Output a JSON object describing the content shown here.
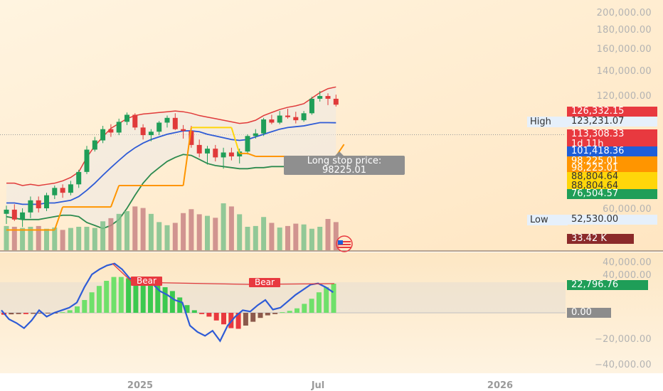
{
  "chart_data": [
    {
      "type": "candlestick",
      "pane": "price",
      "title": "",
      "yscale": "log",
      "y_ticks": [
        "200,000.00",
        "180,000.00",
        "160,000.00",
        "140,000.00",
        "120,000.00",
        "60,000.00",
        "40,000.00"
      ],
      "y_tick_values": [
        200000,
        180000,
        160000,
        140000,
        120000,
        60000,
        40000
      ],
      "x_ticks": [
        "2025",
        "Jul",
        "2026"
      ],
      "candles": [
        [
          58000,
          61000,
          54500,
          59500
        ],
        [
          59500,
          61500,
          55500,
          56000
        ],
        [
          56000,
          60000,
          53500,
          58500
        ],
        [
          58500,
          64500,
          56500,
          63000
        ],
        [
          63000,
          64500,
          58500,
          60000
        ],
        [
          60000,
          66000,
          59000,
          65000
        ],
        [
          65000,
          69000,
          63500,
          68000
        ],
        [
          68000,
          69500,
          64000,
          66000
        ],
        [
          66000,
          71000,
          65000,
          69500
        ],
        [
          69500,
          76000,
          68000,
          75000
        ],
        [
          75000,
          88000,
          74000,
          86000
        ],
        [
          86000,
          93000,
          85000,
          91000
        ],
        [
          91000,
          99500,
          89500,
          97500
        ],
        [
          97500,
          100500,
          93000,
          95500
        ],
        [
          95500,
          104000,
          94000,
          102000
        ],
        [
          102000,
          108000,
          100000,
          106500
        ],
        [
          106500,
          107500,
          97000,
          98500
        ],
        [
          98500,
          100500,
          91500,
          94000
        ],
        [
          94000,
          97500,
          90500,
          96000
        ],
        [
          96000,
          102500,
          94000,
          101500
        ],
        [
          101500,
          106000,
          98500,
          104500
        ],
        [
          104500,
          107500,
          97000,
          97500
        ],
        [
          97500,
          100000,
          92000,
          96500
        ],
        [
          96500,
          99500,
          87000,
          88500
        ],
        [
          88500,
          91500,
          82000,
          84000
        ],
        [
          84000,
          88000,
          78500,
          86500
        ],
        [
          86500,
          88500,
          80000,
          82000
        ],
        [
          82000,
          87000,
          76500,
          84500
        ],
        [
          84500,
          87000,
          80500,
          82500
        ],
        [
          82500,
          86500,
          79000,
          85000
        ],
        [
          85000,
          94500,
          83500,
          93500
        ],
        [
          93500,
          97500,
          92000,
          95000
        ],
        [
          95000,
          104500,
          93500,
          103500
        ],
        [
          103500,
          106500,
          100500,
          101500
        ],
        [
          101500,
          109000,
          100500,
          106000
        ],
        [
          106000,
          110500,
          104000,
          105000
        ],
        [
          105000,
          108500,
          101000,
          103000
        ],
        [
          103000,
          109000,
          102000,
          107500
        ],
        [
          107500,
          119000,
          106500,
          117500
        ],
        [
          117500,
          123231,
          115500,
          119500
        ],
        [
          119500,
          121500,
          113000,
          117500
        ],
        [
          117500,
          120500,
          112000,
          113308
        ]
      ],
      "bollinger": {
        "upper": [
          70000,
          70000,
          69000,
          69500,
          69000,
          69500,
          70000,
          71000,
          72500,
          75000,
          82000,
          88000,
          93000,
          98000,
          101000,
          104000,
          106000,
          107000,
          107500,
          108000,
          108500,
          109000,
          108500,
          107500,
          106000,
          105000,
          104000,
          103000,
          102000,
          101000,
          101500,
          103000,
          106000,
          108000,
          110000,
          111500,
          112500,
          114000,
          118000,
          122000,
          125000,
          126332
        ],
        "basis": [
          62000,
          62000,
          61500,
          61500,
          61500,
          62000,
          62000,
          62500,
          63000,
          64500,
          67000,
          70000,
          73500,
          77000,
          80500,
          84000,
          87000,
          89500,
          91500,
          93000,
          94500,
          95500,
          96500,
          96500,
          96000,
          94500,
          93500,
          92500,
          91500,
          91000,
          91500,
          93000,
          94500,
          96000,
          97500,
          98500,
          99000,
          99500,
          100500,
          101500,
          101500,
          101418
        ],
        "lower": [
          57000,
          56500,
          56000,
          56000,
          56000,
          56500,
          57000,
          57500,
          57500,
          57000,
          55000,
          54000,
          53000,
          54000,
          56000,
          60000,
          65000,
          70000,
          74000,
          77000,
          80000,
          82000,
          83500,
          83000,
          81000,
          79000,
          78000,
          77500,
          77000,
          76500,
          76500,
          77000,
          77000,
          77500,
          77500,
          77500,
          77500,
          77000,
          76500,
          76000,
          76000,
          76504
        ]
      },
      "long_stop": [
        [
          0,
          52530
        ],
        [
          6,
          52530
        ],
        [
          7,
          60500
        ],
        [
          13,
          60500
        ],
        [
          14,
          69000
        ],
        [
          22,
          69000
        ],
        [
          23,
          98500
        ],
        [
          28,
          98500
        ],
        [
          29,
          84000
        ],
        [
          30,
          84000
        ],
        [
          31,
          82500
        ],
        [
          41,
          82500
        ],
        [
          42,
          88804
        ]
      ],
      "volume": [
        62,
        60,
        57,
        60,
        62,
        55,
        58,
        52,
        57,
        60,
        60,
        57,
        74,
        82,
        93,
        100,
        112,
        108,
        93,
        72,
        64,
        70,
        95,
        105,
        92,
        88,
        83,
        120,
        112,
        92,
        60,
        62,
        85,
        70,
        58,
        62,
        68,
        66,
        55,
        60,
        80,
        72
      ],
      "price_labels": [
        {
          "label": "",
          "text": "126,332.15",
          "bg": "#e8393f",
          "fg": "#ffffff"
        },
        {
          "label": "High",
          "text": "123,231.07",
          "bg": "#e6f0fb",
          "fg": "#333333"
        },
        {
          "label": "",
          "text": "113,308.33",
          "bg": "#e8393f",
          "fg": "#ffffff"
        },
        {
          "label": "",
          "text": "1d 11h",
          "bg": "#e8393f",
          "fg": "#ffffff"
        },
        {
          "label": "",
          "text": "101,418.36",
          "bg": "#1e5ed8",
          "fg": "#ffffff"
        },
        {
          "label": "",
          "text": "98,225.01",
          "bg": "#ff9500",
          "fg": "#ffffff"
        },
        {
          "label": "",
          "text": "98,225.01",
          "bg": "#ff9500",
          "fg": "#ffffff"
        },
        {
          "label": "",
          "text": "88,804.64",
          "bg": "#ffd60a",
          "fg": "#333333"
        },
        {
          "label": "",
          "text": "88,804.64",
          "bg": "#ffd60a",
          "fg": "#333333"
        },
        {
          "label": "",
          "text": "76,504.57",
          "bg": "#1f9e58",
          "fg": "#ffffff"
        },
        {
          "label": "Low",
          "text": "52,530.00",
          "bg": "#e6f0fb",
          "fg": "#333333"
        },
        {
          "label": "",
          "text": "33.42 K",
          "bg": "#8b2a2a",
          "fg": "#ffffff"
        }
      ],
      "tooltip": {
        "line1": "Long stop price:",
        "line2": "98225.01"
      }
    },
    {
      "type": "histogram",
      "pane": "oscillator",
      "y_ticks": [
        "40,000.00",
        "−20,000.00",
        "−40,000.00"
      ],
      "y_tick_values": [
        40000,
        -20000,
        -40000
      ],
      "histogram": [
        -1500,
        -1200,
        -1000,
        -1000,
        -800,
        -600,
        -500,
        -300,
        500,
        2000,
        5000,
        10000,
        16000,
        21000,
        25000,
        28000,
        28000,
        27000,
        25000,
        24000,
        23000,
        22000,
        20000,
        17000,
        12000,
        6000,
        2000,
        -1000,
        -3000,
        -6000,
        -9000,
        -12000,
        -12500,
        -10000,
        -7000,
        -4000,
        -2000,
        -1000,
        500,
        1500,
        3500,
        7000,
        11000,
        16000,
        20000,
        22797
      ],
      "signal": [
        2000,
        -5000,
        -8000,
        -12000,
        -6000,
        2000,
        -3000,
        0,
        2000,
        4000,
        8000,
        20000,
        30000,
        34000,
        37000,
        38500,
        34000,
        27000,
        25000,
        26000,
        23000,
        17000,
        14000,
        10000,
        8000,
        -10000,
        -15000,
        -18000,
        -14000,
        -22000,
        -10000,
        -3000,
        2000,
        1000,
        6000,
        10000,
        2500,
        4000,
        9000,
        14000,
        18000,
        22000,
        23000,
        20000,
        16000
      ],
      "bear_labels": [
        "Bear",
        "Bear"
      ],
      "value_labels": [
        {
          "text": "22,796.76",
          "bg": "#1f9e58",
          "fg": "#ffffff"
        },
        {
          "text": "0.00",
          "bg": "#8c8c8c",
          "fg": "#ffffff"
        }
      ]
    }
  ]
}
